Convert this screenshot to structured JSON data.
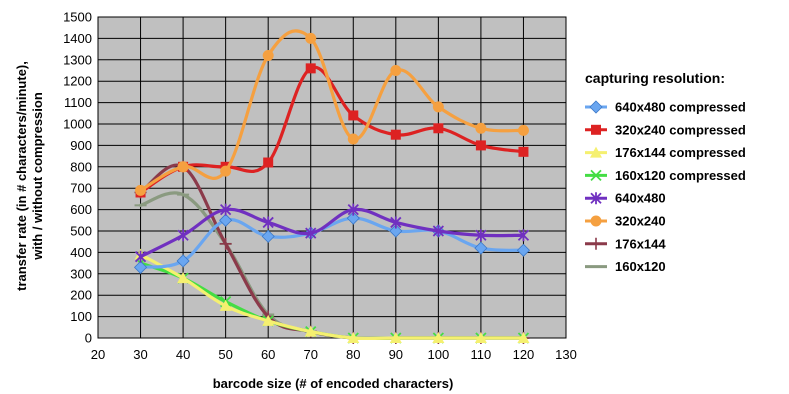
{
  "chart_data": {
    "type": "line",
    "xlabel": "barcode size (# of encoded characters)",
    "ylabel_lines": [
      "transfer rate (in # characters/minute),",
      "with / without compression"
    ],
    "xlim": [
      20,
      130
    ],
    "ylim": [
      0,
      1500
    ],
    "xticks": [
      20,
      30,
      40,
      50,
      60,
      70,
      80,
      90,
      100,
      110,
      120,
      130
    ],
    "yticks": [
      0,
      100,
      200,
      300,
      400,
      500,
      600,
      700,
      800,
      900,
      1000,
      1100,
      1200,
      1300,
      1400,
      1500
    ],
    "grid": true,
    "plot_background": "#c0c0c0",
    "legend_title": "capturing resolution:",
    "legend_position": "right",
    "series": [
      {
        "name": "640x480 compressed",
        "color": "#6aa6f0",
        "marker": "diamond",
        "x": [
          30,
          40,
          50,
          60,
          70,
          80,
          90,
          100,
          110,
          120
        ],
        "y": [
          330,
          360,
          550,
          475,
          490,
          560,
          500,
          500,
          420,
          410
        ]
      },
      {
        "name": "320x240 compressed",
        "color": "#dd2222",
        "marker": "square",
        "x": [
          30,
          40,
          50,
          60,
          70,
          80,
          90,
          100,
          110,
          120
        ],
        "y": [
          680,
          800,
          800,
          820,
          1260,
          1040,
          950,
          980,
          900,
          870
        ]
      },
      {
        "name": "176x144 compressed",
        "color": "#f5f070",
        "marker": "triangle",
        "x": [
          30,
          40,
          50,
          60,
          70,
          80,
          90,
          100,
          110,
          120
        ],
        "y": [
          390,
          280,
          150,
          80,
          30,
          0,
          0,
          0,
          0,
          0
        ]
      },
      {
        "name": "160x120 compressed",
        "color": "#44dd44",
        "marker": "x",
        "x": [
          30,
          40,
          50,
          60,
          70,
          80,
          90,
          100,
          110,
          120
        ],
        "y": [
          350,
          280,
          170,
          80,
          30,
          0,
          0,
          0,
          0,
          0
        ]
      },
      {
        "name": "640x480",
        "color": "#7030c0",
        "marker": "star",
        "x": [
          30,
          40,
          50,
          60,
          70,
          80,
          90,
          100,
          110,
          120
        ],
        "y": [
          380,
          480,
          600,
          540,
          490,
          600,
          540,
          500,
          480,
          480
        ]
      },
      {
        "name": "320x240",
        "color": "#f5a040",
        "marker": "circle",
        "x": [
          30,
          40,
          50,
          60,
          70,
          80,
          90,
          100,
          110,
          120
        ],
        "y": [
          690,
          800,
          780,
          1320,
          1400,
          930,
          1250,
          1080,
          980,
          970
        ]
      },
      {
        "name": "176x144",
        "color": "#8b3a4a",
        "marker": "plus",
        "x": [
          30,
          40,
          50,
          60,
          70,
          80,
          90,
          100,
          110,
          120
        ],
        "y": [
          680,
          800,
          440,
          100,
          30,
          0,
          0,
          0,
          0,
          0
        ]
      },
      {
        "name": "160x120",
        "color": "#8a9a80",
        "marker": "dash",
        "x": [
          30,
          40,
          50,
          60,
          70,
          80,
          90,
          100,
          110,
          120
        ],
        "y": [
          620,
          670,
          440,
          110,
          30,
          0,
          0,
          0,
          0,
          0
        ]
      }
    ]
  }
}
